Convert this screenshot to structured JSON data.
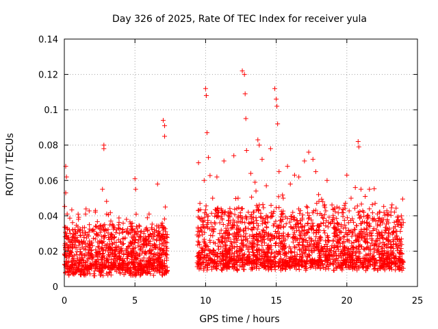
{
  "chart_data": {
    "type": "scatter",
    "title": "Day 326 of 2025, Rate Of TEC Index for receiver yula",
    "xlabel": "GPS time / hours",
    "ylabel": "ROTI / TECUs",
    "xlim": [
      0,
      25
    ],
    "ylim": [
      0,
      0.14
    ],
    "xticks": [
      0,
      5,
      10,
      15,
      20,
      25
    ],
    "xtick_labels": [
      "0",
      "5",
      "10",
      "15",
      "20",
      "25"
    ],
    "yticks": [
      0,
      0.02,
      0.04,
      0.06,
      0.08,
      0.1,
      0.12,
      0.14
    ],
    "ytick_labels": [
      "0",
      "0.02",
      "0.04",
      "0.06",
      "0.08",
      "0.1",
      "0.12",
      "0.14"
    ],
    "grid": true,
    "marker": "+",
    "color": "#ff0000",
    "data_gaps_hours": [
      [
        7.3,
        9.4
      ]
    ],
    "series": [
      {
        "name": "ROTI",
        "x": [
          0.1,
          0.1,
          0.15,
          0.2,
          0.2,
          0.2,
          0.3,
          0.4,
          0.6,
          0.8,
          1.0,
          1.2,
          1.5,
          1.8,
          2.0,
          2.2,
          2.5,
          2.7,
          2.8,
          2.8,
          2.85,
          3.0,
          3.3,
          3.6,
          4.0,
          4.4,
          4.7,
          5.0,
          5.05,
          5.1,
          5.5,
          6.0,
          6.3,
          6.6,
          7.0,
          7.1,
          7.1,
          7.15,
          7.2,
          9.5,
          9.6,
          9.9,
          10.0,
          10.05,
          10.1,
          10.2,
          10.5,
          10.8,
          11.0,
          11.3,
          11.6,
          12.0,
          12.3,
          12.6,
          12.75,
          12.8,
          12.85,
          12.9,
          13.2,
          13.5,
          13.7,
          13.8,
          14.0,
          14.3,
          14.6,
          14.9,
          15.0,
          15.05,
          15.1,
          15.2,
          15.5,
          15.8,
          16.0,
          16.3,
          16.6,
          17.0,
          17.3,
          17.6,
          17.8,
          18.0,
          18.3,
          18.6,
          19.0,
          19.3,
          19.6,
          20.0,
          20.3,
          20.6,
          20.8,
          20.85,
          21.0,
          21.3,
          21.6,
          22.0,
          22.3,
          22.6,
          23.0,
          23.3,
          23.6,
          23.9
        ],
        "y": [
          0.068,
          0.053,
          0.062,
          0.041,
          0.022,
          0.011,
          0.017,
          0.025,
          0.014,
          0.03,
          0.038,
          0.018,
          0.041,
          0.012,
          0.032,
          0.043,
          0.02,
          0.055,
          0.08,
          0.078,
          0.035,
          0.041,
          0.012,
          0.018,
          0.025,
          0.038,
          0.02,
          0.061,
          0.055,
          0.03,
          0.015,
          0.041,
          0.028,
          0.058,
          0.094,
          0.091,
          0.085,
          0.045,
          0.018,
          0.07,
          0.047,
          0.06,
          0.112,
          0.108,
          0.087,
          0.073,
          0.05,
          0.062,
          0.03,
          0.071,
          0.042,
          0.074,
          0.05,
          0.122,
          0.12,
          0.109,
          0.095,
          0.077,
          0.064,
          0.059,
          0.083,
          0.08,
          0.072,
          0.057,
          0.078,
          0.112,
          0.106,
          0.102,
          0.092,
          0.065,
          0.05,
          0.068,
          0.058,
          0.063,
          0.062,
          0.071,
          0.076,
          0.072,
          0.065,
          0.052,
          0.048,
          0.06,
          0.038,
          0.045,
          0.035,
          0.063,
          0.05,
          0.056,
          0.082,
          0.079,
          0.055,
          0.051,
          0.055,
          0.047,
          0.042,
          0.038,
          0.033,
          0.031,
          0.035,
          0.038
        ]
      }
    ]
  }
}
